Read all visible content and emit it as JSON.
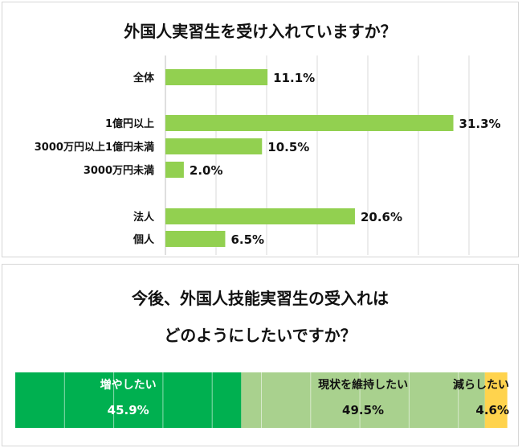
{
  "chart_data": [
    {
      "type": "bar",
      "orientation": "horizontal",
      "title": "外国人実習生を受け入れていますか？",
      "categories": [
        "全体",
        "1億円以上",
        "3000万円以上1億円未満",
        "3000万円未満",
        "法人",
        "個人"
      ],
      "values": [
        11.1,
        31.3,
        10.5,
        2.0,
        20.6,
        6.5
      ],
      "value_labels": [
        "11.1%",
        "31.3%",
        "10.5%",
        "2.0%",
        "20.6%",
        "6.5%"
      ],
      "groups": [
        [
          0
        ],
        [
          1,
          2,
          3
        ],
        [
          4,
          5
        ]
      ],
      "xlim": [
        0,
        33
      ],
      "grid": true,
      "bar_color": "#92d050"
    },
    {
      "type": "bar",
      "orientation": "horizontal-stacked-100",
      "title_lines": [
        "今後、外国人技能実習生の受入れは",
        "どのようにしたいですか？"
      ],
      "series": [
        {
          "name": "増やしたい",
          "value": 45.9,
          "label": "45.9%",
          "color": "#00b050"
        },
        {
          "name": "現状を維持したい",
          "value": 49.5,
          "label": "49.5%",
          "color": "#a9d18e"
        },
        {
          "name": "減らしたい",
          "value": 4.6,
          "label": "4.6%",
          "color": "#ffd34d"
        }
      ],
      "xlim": [
        0,
        100
      ],
      "grid": true
    }
  ]
}
